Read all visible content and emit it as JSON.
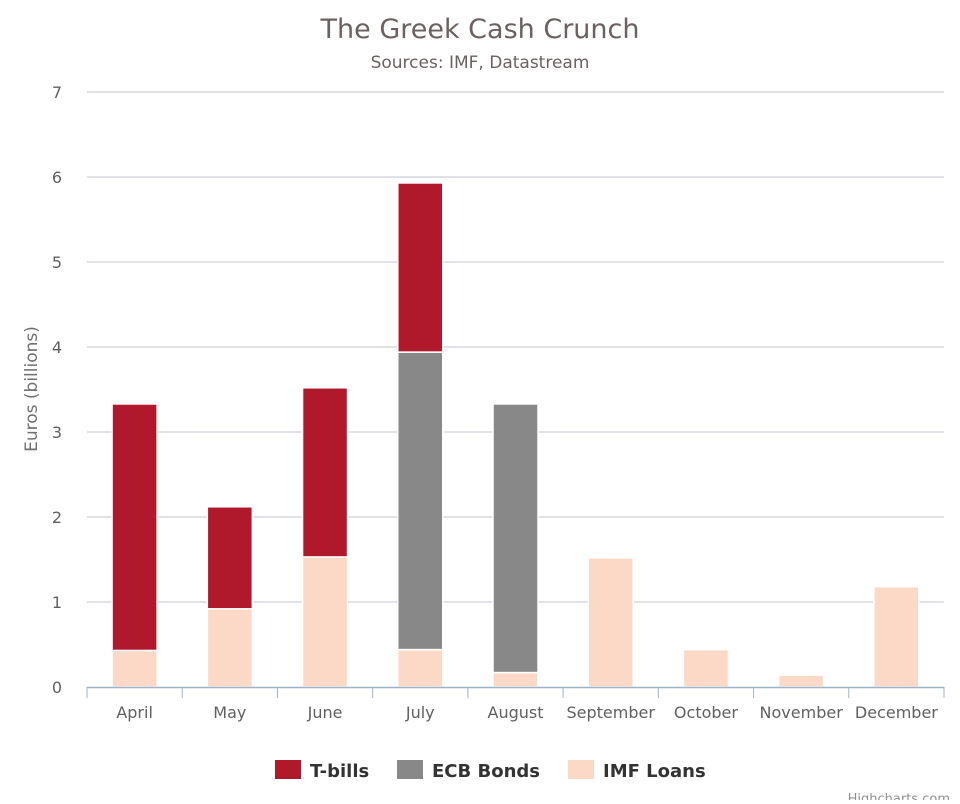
{
  "chart_data": {
    "type": "bar",
    "stacked": true,
    "title": "The Greek Cash Crunch",
    "subtitle": "Sources: IMF, Datastream",
    "xlabel": "",
    "ylabel": "Euros (billions)",
    "ylim": [
      0,
      7
    ],
    "yticks": [
      0,
      1,
      2,
      3,
      4,
      5,
      6,
      7
    ],
    "grid": true,
    "legend": "bottom-center",
    "categories": [
      "April",
      "May",
      "June",
      "July",
      "August",
      "September",
      "October",
      "November",
      "December"
    ],
    "series": [
      {
        "name": "IMF Loans",
        "color": "#fcd9c6",
        "values": [
          0.43,
          0.92,
          1.53,
          0.44,
          0.17,
          1.52,
          0.44,
          0.14,
          1.18
        ]
      },
      {
        "name": "ECB Bonds",
        "color": "#888888",
        "values": [
          0,
          0,
          0,
          3.5,
          3.16,
          0,
          0,
          0,
          0
        ]
      },
      {
        "name": "T-bills",
        "color": "#b0182c",
        "values": [
          2.9,
          1.2,
          1.99,
          1.99,
          0,
          0,
          0,
          0,
          0
        ]
      }
    ],
    "legend_order": [
      "T-bills",
      "ECB Bonds",
      "IMF Loans"
    ]
  },
  "credits": "Highcharts.com"
}
